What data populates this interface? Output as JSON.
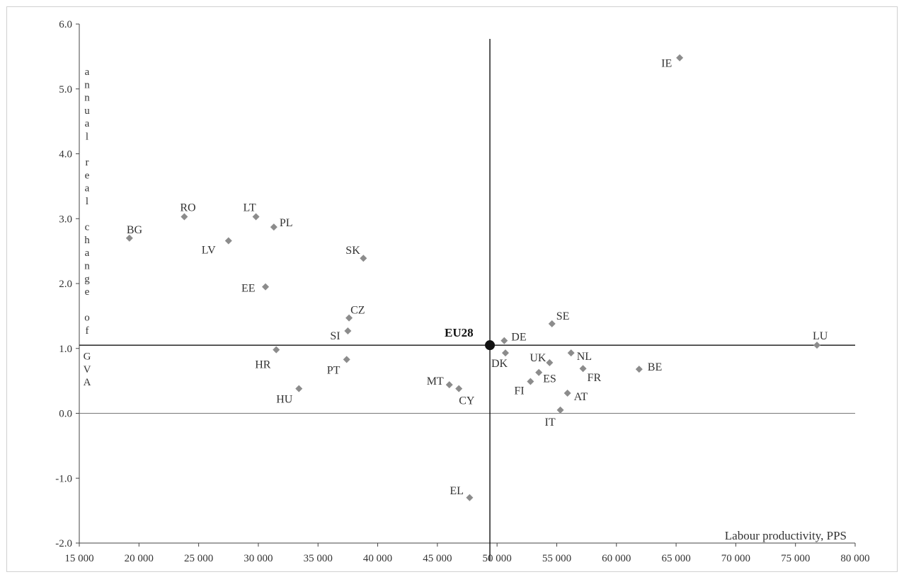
{
  "chart_data": {
    "type": "scatter",
    "title": "",
    "xlabel": "Labour productivity, PPS",
    "ylabel": "annual real change of GVA",
    "xlim": [
      15000,
      80000
    ],
    "ylim": [
      -2.0,
      6.0
    ],
    "x_ticks": [
      "15 000",
      "20 000",
      "25 000",
      "30 000",
      "35 000",
      "40 000",
      "45 000",
      "50 000",
      "55 000",
      "60 000",
      "65 000",
      "70 000",
      "75 000",
      "80 000"
    ],
    "y_ticks": [
      "6.0",
      "5.0",
      "4.0",
      "3.0",
      "2.0",
      "1.0",
      "0.0",
      "-1.0",
      "-2.0"
    ],
    "reference_lines": {
      "x": 49400,
      "y": 1.05
    },
    "marker_color": "#8c8c8c",
    "reference_color": "#111111",
    "points": [
      {
        "label": "IE",
        "x": 65300,
        "y": 5.48
      },
      {
        "label": "BG",
        "x": 19200,
        "y": 2.7
      },
      {
        "label": "RO",
        "x": 23800,
        "y": 3.03
      },
      {
        "label": "LT",
        "x": 29800,
        "y": 3.03
      },
      {
        "label": "PL",
        "x": 31300,
        "y": 2.87
      },
      {
        "label": "LV",
        "x": 27500,
        "y": 2.66
      },
      {
        "label": "SK",
        "x": 38800,
        "y": 2.39
      },
      {
        "label": "EE",
        "x": 30600,
        "y": 1.95
      },
      {
        "label": "CZ",
        "x": 37600,
        "y": 1.47
      },
      {
        "label": "SI",
        "x": 37500,
        "y": 1.27
      },
      {
        "label": "HR",
        "x": 31500,
        "y": 0.98
      },
      {
        "label": "PT",
        "x": 37400,
        "y": 0.83
      },
      {
        "label": "HU",
        "x": 33400,
        "y": 0.38
      },
      {
        "label": "MT",
        "x": 46000,
        "y": 0.44
      },
      {
        "label": "CY",
        "x": 46800,
        "y": 0.38
      },
      {
        "label": "EL",
        "x": 47700,
        "y": -1.3
      },
      {
        "label": "DE",
        "x": 50600,
        "y": 1.12
      },
      {
        "label": "DK",
        "x": 50700,
        "y": 0.93
      },
      {
        "label": "SE",
        "x": 54600,
        "y": 1.38
      },
      {
        "label": "UK",
        "x": 54400,
        "y": 0.78
      },
      {
        "label": "ES",
        "x": 53500,
        "y": 0.63
      },
      {
        "label": "FI",
        "x": 52800,
        "y": 0.49
      },
      {
        "label": "NL",
        "x": 56200,
        "y": 0.93
      },
      {
        "label": "FR",
        "x": 57200,
        "y": 0.69
      },
      {
        "label": "AT",
        "x": 55900,
        "y": 0.31
      },
      {
        "label": "IT",
        "x": 55300,
        "y": 0.05
      },
      {
        "label": "BE",
        "x": 61900,
        "y": 0.68
      },
      {
        "label": "LU",
        "x": 76800,
        "y": 1.05
      }
    ],
    "reference_point": {
      "label": "EU28",
      "x": 49400,
      "y": 1.05
    }
  }
}
